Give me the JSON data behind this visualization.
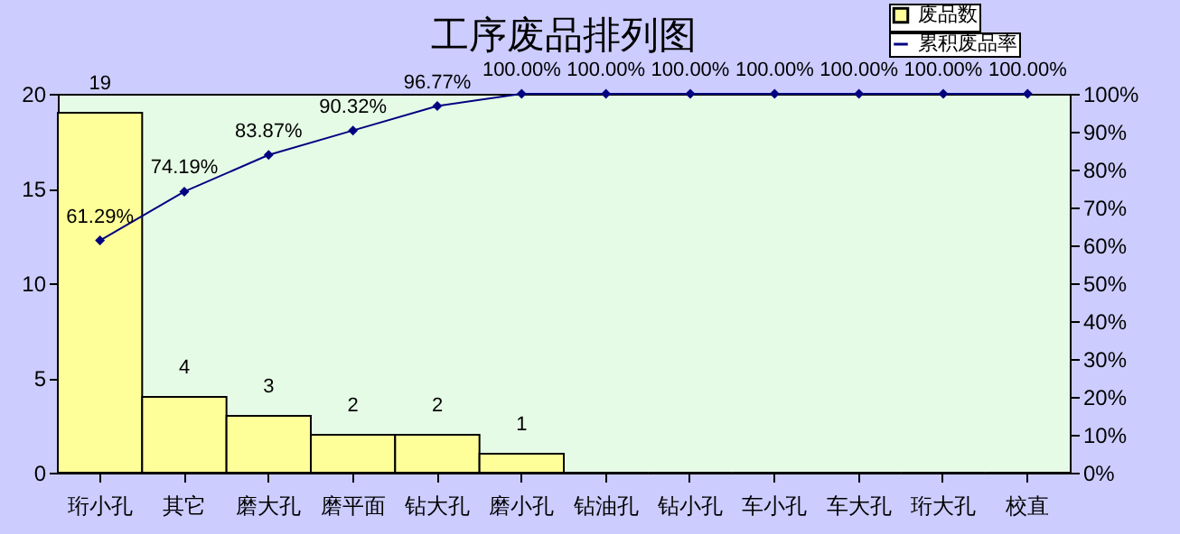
{
  "chart_data": {
    "type": "bar",
    "title": "工序废品排列图",
    "categories": [
      "珩小孔",
      "其它",
      "磨大孔",
      "磨平面",
      "钻大孔",
      "磨小孔",
      "钻油孔",
      "钻小孔",
      "车小孔",
      "车大孔",
      "珩大孔",
      "校直"
    ],
    "series": [
      {
        "name": "废品数",
        "color": "#ffff99",
        "values": [
          19,
          4,
          3,
          2,
          2,
          1,
          0,
          0,
          0,
          0,
          0,
          0
        ],
        "value_labels": [
          "19",
          "4",
          "3",
          "2",
          "2",
          "1",
          null,
          null,
          null,
          null,
          null,
          null
        ]
      },
      {
        "name": "累积废品率",
        "type": "line",
        "axis": "y2",
        "color": "#000080",
        "values": [
          61.29,
          74.19,
          83.87,
          90.32,
          96.77,
          100,
          100,
          100,
          100,
          100,
          100,
          100
        ],
        "value_labels": [
          "61.29%",
          "74.19%",
          "83.87%",
          "90.32%",
          "96.77%",
          "100.00%",
          "100.00%",
          "100.00%",
          "100.00%",
          "100.00%",
          "100.00%",
          "100.00%"
        ]
      }
    ],
    "ylim": [
      0,
      20
    ],
    "yticks": [
      0,
      5,
      10,
      15,
      20
    ],
    "y2lim": [
      0,
      100
    ],
    "y2ticks": [
      {
        "value": 0,
        "label": "0%"
      },
      {
        "value": 10,
        "label": "10%"
      },
      {
        "value": 20,
        "label": "20%"
      },
      {
        "value": 30,
        "label": "30%"
      },
      {
        "value": 40,
        "label": "40%"
      },
      {
        "value": 50,
        "label": "50%"
      },
      {
        "value": 60,
        "label": "60%"
      },
      {
        "value": 70,
        "label": "70%"
      },
      {
        "value": 80,
        "label": "80%"
      },
      {
        "value": 90,
        "label": "90%"
      },
      {
        "value": 100,
        "label": "100%"
      }
    ],
    "grid": false,
    "legend": "top right",
    "marker": "diamond",
    "line_style": "solid"
  }
}
